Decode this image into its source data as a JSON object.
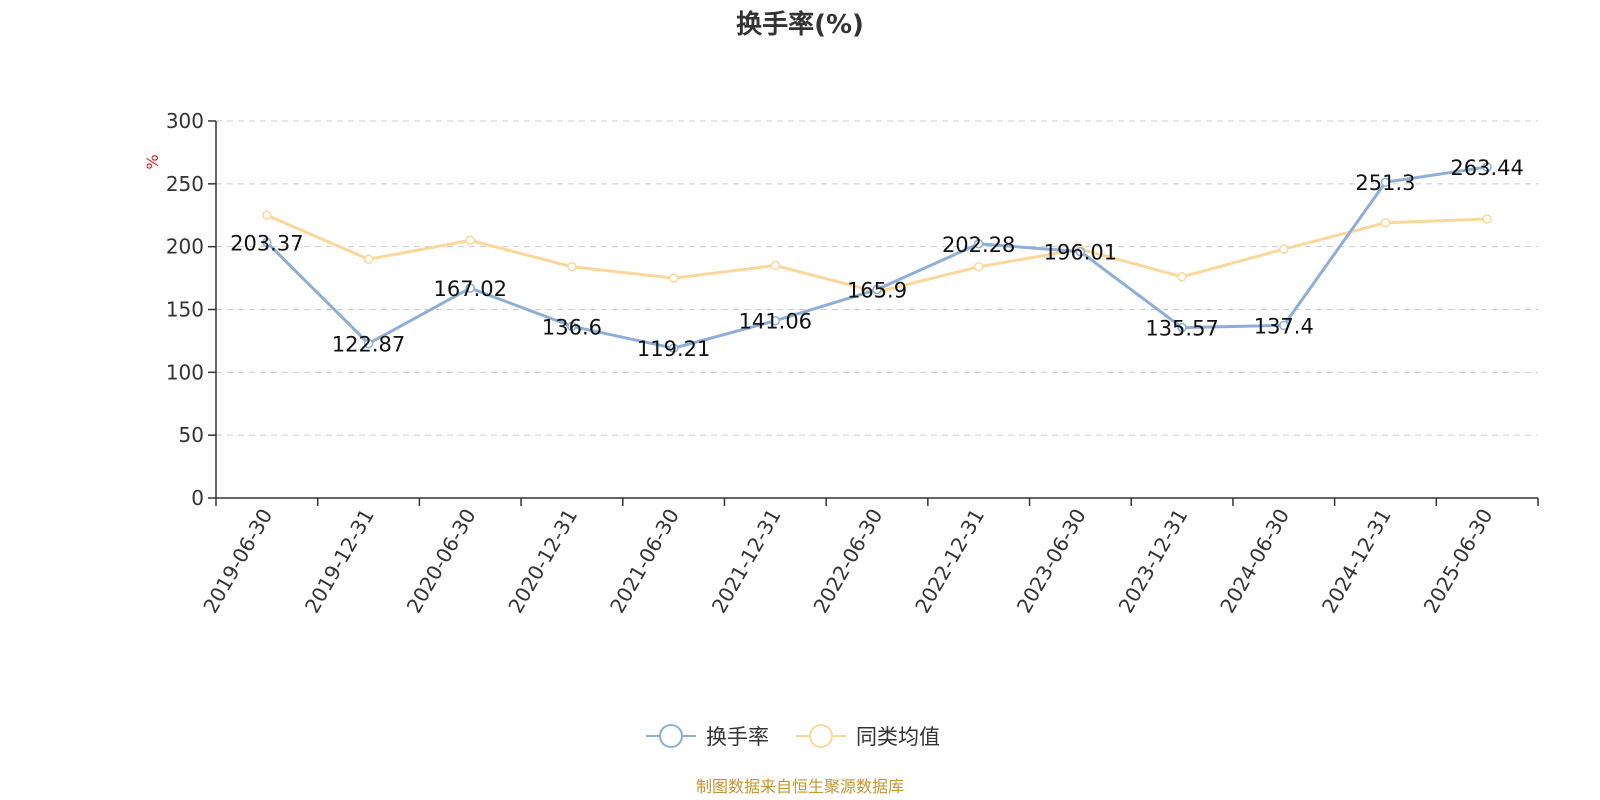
{
  "chart_data": {
    "type": "line",
    "title": "换手率(%)",
    "ylabel": "%",
    "xlabel": "",
    "x": [
      "2019-06-30",
      "2019-12-31",
      "2020-06-30",
      "2020-12-31",
      "2021-06-30",
      "2021-12-31",
      "2022-06-30",
      "2022-12-31",
      "2023-06-30",
      "2023-12-31",
      "2024-06-30",
      "2024-12-31",
      "2025-06-30"
    ],
    "ylim": [
      0,
      300
    ],
    "yticks": [
      0,
      50,
      100,
      150,
      200,
      250,
      300
    ],
    "grid": true,
    "legend_position": "bottom",
    "series": [
      {
        "name": "换手率",
        "color": "#8eaed8",
        "values": [
          203.37,
          122.87,
          167.02,
          136.6,
          119.21,
          141.06,
          165.9,
          202.28,
          196.01,
          135.57,
          137.4,
          251.3,
          263.44
        ],
        "data_labels": [
          "203.37",
          "122.87",
          "167.02",
          "136.6",
          "119.21",
          "141.06",
          "165.9",
          "202.28",
          "196.01",
          "135.57",
          "137.4",
          "251.3",
          "263.44"
        ]
      },
      {
        "name": "同类均值",
        "color": "#fbd89a",
        "values": [
          225,
          190,
          205,
          184,
          175,
          185,
          164,
          184,
          198,
          176,
          198,
          219,
          222
        ]
      }
    ]
  },
  "source": "制图数据来自恒生聚源数据库"
}
